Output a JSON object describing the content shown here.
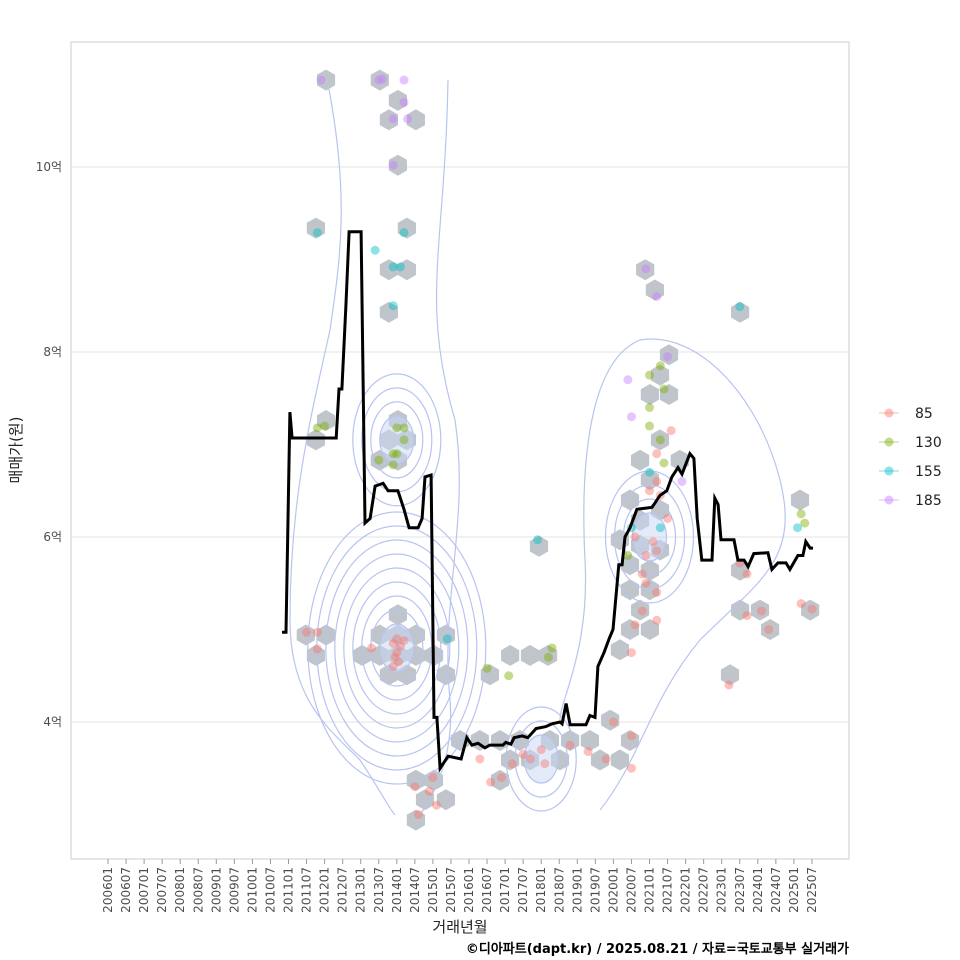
{
  "chart_data": {
    "type": "scatter",
    "title": "",
    "xlabel": "거래년월",
    "ylabel": "매매가(원)",
    "caption": "©디아파트(dapt.kr) / 2025.08.21 / 자료=국토교통부 실거래가",
    "ylim": [
      2.55,
      11.4
    ],
    "xlim": [
      2005.0,
      2026.5
    ],
    "yticks": [
      {
        "v": 4,
        "label": "4억"
      },
      {
        "v": 6,
        "label": "6억"
      },
      {
        "v": 8,
        "label": "8억"
      },
      {
        "v": 10,
        "label": "10억"
      }
    ],
    "xticks": [
      "200601",
      "200607",
      "200701",
      "200707",
      "200801",
      "200807",
      "200901",
      "200907",
      "201001",
      "201007",
      "201101",
      "201107",
      "201201",
      "201207",
      "201301",
      "201307",
      "201401",
      "201407",
      "201501",
      "201507",
      "201601",
      "201607",
      "201701",
      "201707",
      "201801",
      "201807",
      "201901",
      "201907",
      "202001",
      "202007",
      "202101",
      "202107",
      "202201",
      "202207",
      "202301",
      "202307",
      "202401",
      "202407",
      "202501",
      "202507"
    ],
    "legend": {
      "position": "right",
      "entries": [
        {
          "label": "85",
          "color": "#F8766D"
        },
        {
          "label": "130",
          "color": "#7CAE00"
        },
        {
          "label": "155",
          "color": "#00BFC4"
        },
        {
          "label": "185",
          "color": "#C77CFF"
        }
      ]
    },
    "hexbins": [
      [
        2012.04,
        10.94
      ],
      [
        2013.53,
        10.94
      ],
      [
        2014.03,
        10.72
      ],
      [
        2014.53,
        10.51
      ],
      [
        2013.78,
        10.51
      ],
      [
        2014.03,
        10.02
      ],
      [
        2011.76,
        9.34
      ],
      [
        2014.28,
        9.34
      ],
      [
        2013.78,
        8.89
      ],
      [
        2014.28,
        8.89
      ],
      [
        2013.78,
        8.43
      ],
      [
        2017.94,
        5.9
      ],
      [
        2020.88,
        8.89
      ],
      [
        2021.15,
        8.67
      ],
      [
        2023.51,
        8.43
      ],
      [
        2021.54,
        7.97
      ],
      [
        2021.29,
        7.75
      ],
      [
        2021.01,
        7.54
      ],
      [
        2021.54,
        7.54
      ],
      [
        2011.76,
        7.05
      ],
      [
        2012.04,
        7.26
      ],
      [
        2014.03,
        7.26
      ],
      [
        2013.78,
        7.05
      ],
      [
        2014.28,
        7.05
      ],
      [
        2014.03,
        6.83
      ],
      [
        2013.53,
        6.83
      ],
      [
        2021.29,
        7.05
      ],
      [
        2020.74,
        6.83
      ],
      [
        2021.84,
        6.83
      ],
      [
        2021.01,
        6.62
      ],
      [
        2020.46,
        6.4
      ],
      [
        2021.29,
        6.29
      ],
      [
        2020.74,
        6.18
      ],
      [
        2020.18,
        5.97
      ],
      [
        2020.74,
        5.91
      ],
      [
        2021.29,
        5.86
      ],
      [
        2020.46,
        5.7
      ],
      [
        2021.01,
        5.64
      ],
      [
        2020.46,
        5.43
      ],
      [
        2021.01,
        5.43
      ],
      [
        2020.74,
        5.21
      ],
      [
        2020.46,
        5.0
      ],
      [
        2021.01,
        5.0
      ],
      [
        2020.18,
        4.78
      ],
      [
        2023.51,
        5.64
      ],
      [
        2023.51,
        5.21
      ],
      [
        2024.06,
        5.21
      ],
      [
        2024.34,
        5.0
      ],
      [
        2025.17,
        6.4
      ],
      [
        2025.45,
        5.21
      ],
      [
        2023.23,
        4.51
      ],
      [
        2011.48,
        4.94
      ],
      [
        2012.04,
        4.94
      ],
      [
        2011.76,
        4.72
      ],
      [
        2013.53,
        4.94
      ],
      [
        2014.03,
        4.94
      ],
      [
        2014.53,
        4.94
      ],
      [
        2013.04,
        4.72
      ],
      [
        2013.53,
        4.72
      ],
      [
        2014.03,
        4.72
      ],
      [
        2014.53,
        4.72
      ],
      [
        2015.03,
        4.72
      ],
      [
        2015.36,
        4.94
      ],
      [
        2013.78,
        4.51
      ],
      [
        2014.28,
        4.51
      ],
      [
        2015.36,
        4.51
      ],
      [
        2014.03,
        5.16
      ],
      [
        2016.58,
        4.51
      ],
      [
        2017.14,
        4.72
      ],
      [
        2017.69,
        4.72
      ],
      [
        2018.19,
        4.72
      ],
      [
        2015.75,
        3.8
      ],
      [
        2016.3,
        3.8
      ],
      [
        2016.86,
        3.8
      ],
      [
        2017.41,
        3.8
      ],
      [
        2017.14,
        3.59
      ],
      [
        2017.69,
        3.59
      ],
      [
        2018.24,
        3.8
      ],
      [
        2018.8,
        3.8
      ],
      [
        2019.35,
        3.8
      ],
      [
        2019.91,
        4.02
      ],
      [
        2019.63,
        3.59
      ],
      [
        2020.18,
        3.59
      ],
      [
        2020.46,
        3.8
      ],
      [
        2018.52,
        3.59
      ],
      [
        2016.86,
        3.37
      ],
      [
        2014.53,
        3.37
      ],
      [
        2015.03,
        3.37
      ],
      [
        2015.36,
        3.16
      ],
      [
        2014.78,
        3.16
      ],
      [
        2014.53,
        2.94
      ]
    ],
    "points": [
      [
        2011.9,
        10.94,
        "185"
      ],
      [
        2013.6,
        10.95,
        "185"
      ],
      [
        2013.5,
        10.94,
        "185"
      ],
      [
        2014.2,
        10.94,
        "185"
      ],
      [
        2014.2,
        10.7,
        "185"
      ],
      [
        2013.9,
        10.52,
        "185"
      ],
      [
        2014.3,
        10.52,
        "185"
      ],
      [
        2013.9,
        10.02,
        "185"
      ],
      [
        2011.8,
        9.29,
        "155"
      ],
      [
        2014.2,
        9.29,
        "155"
      ],
      [
        2013.4,
        9.1,
        "155"
      ],
      [
        2013.9,
        8.92,
        "155"
      ],
      [
        2014.1,
        8.92,
        "155"
      ],
      [
        2013.9,
        8.5,
        "155"
      ],
      [
        2011.8,
        7.18,
        "130"
      ],
      [
        2012.0,
        7.2,
        "130"
      ],
      [
        2013.5,
        6.83,
        "130"
      ],
      [
        2013.9,
        6.9,
        "130"
      ],
      [
        2014.0,
        6.9,
        "130"
      ],
      [
        2014.0,
        7.18,
        "130"
      ],
      [
        2014.2,
        7.18,
        "130"
      ],
      [
        2014.2,
        7.05,
        "130"
      ],
      [
        2013.9,
        6.78,
        "130"
      ],
      [
        2014.0,
        4.9,
        "85"
      ],
      [
        2013.9,
        4.85,
        "85"
      ],
      [
        2014.1,
        4.82,
        "85"
      ],
      [
        2014.0,
        4.75,
        "85"
      ],
      [
        2013.95,
        4.7,
        "85"
      ],
      [
        2014.05,
        4.65,
        "85"
      ],
      [
        2014.2,
        4.88,
        "85"
      ],
      [
        2013.9,
        4.6,
        "85"
      ],
      [
        2011.5,
        4.97,
        "85"
      ],
      [
        2011.8,
        4.97,
        "85"
      ],
      [
        2011.8,
        4.79,
        "85"
      ],
      [
        2013.3,
        4.8,
        "85"
      ],
      [
        2015.4,
        4.9,
        "155"
      ],
      [
        2016.5,
        4.58,
        "130"
      ],
      [
        2017.1,
        4.5,
        "130"
      ],
      [
        2018.3,
        4.8,
        "130"
      ],
      [
        2018.2,
        4.7,
        "130"
      ],
      [
        2017.9,
        5.97,
        "155"
      ],
      [
        2014.5,
        3.3,
        "85"
      ],
      [
        2014.6,
        3.0,
        "85"
      ],
      [
        2015.0,
        3.4,
        "85"
      ],
      [
        2015.1,
        3.1,
        "85"
      ],
      [
        2014.9,
        3.25,
        "85"
      ],
      [
        2016.3,
        3.6,
        "85"
      ],
      [
        2016.6,
        3.35,
        "85"
      ],
      [
        2016.9,
        3.4,
        "85"
      ],
      [
        2017.2,
        3.55,
        "85"
      ],
      [
        2017.5,
        3.65,
        "85"
      ],
      [
        2017.7,
        3.6,
        "85"
      ],
      [
        2018.0,
        3.7,
        "85"
      ],
      [
        2018.1,
        3.55,
        "85"
      ],
      [
        2018.8,
        3.75,
        "85"
      ],
      [
        2019.3,
        3.68,
        "85"
      ],
      [
        2019.8,
        3.6,
        "85"
      ],
      [
        2020.5,
        3.5,
        "85"
      ],
      [
        2020.5,
        3.85,
        "85"
      ],
      [
        2020.0,
        4.0,
        "85"
      ],
      [
        2020.9,
        8.9,
        "185"
      ],
      [
        2021.2,
        8.6,
        "185"
      ],
      [
        2023.5,
        8.49,
        "155"
      ],
      [
        2021.5,
        7.95,
        "185"
      ],
      [
        2021.3,
        7.85,
        "130"
      ],
      [
        2021.0,
        7.75,
        "130"
      ],
      [
        2020.4,
        7.7,
        "185"
      ],
      [
        2021.4,
        7.6,
        "130"
      ],
      [
        2021.0,
        7.4,
        "130"
      ],
      [
        2020.5,
        7.3,
        "185"
      ],
      [
        2021.0,
        7.2,
        "130"
      ],
      [
        2021.6,
        7.15,
        "85"
      ],
      [
        2021.3,
        7.05,
        "130"
      ],
      [
        2021.2,
        6.9,
        "85"
      ],
      [
        2021.4,
        6.8,
        "130"
      ],
      [
        2021.0,
        6.7,
        "155"
      ],
      [
        2021.2,
        6.6,
        "85"
      ],
      [
        2021.9,
        6.6,
        "185"
      ],
      [
        2021.0,
        6.5,
        "85"
      ],
      [
        2021.3,
        6.45,
        "85"
      ],
      [
        2021.5,
        6.2,
        "85"
      ],
      [
        2021.3,
        6.1,
        "155"
      ],
      [
        2020.5,
        6.1,
        "155"
      ],
      [
        2020.6,
        6.0,
        "85"
      ],
      [
        2021.1,
        5.95,
        "85"
      ],
      [
        2021.2,
        5.85,
        "85"
      ],
      [
        2020.9,
        5.8,
        "85"
      ],
      [
        2020.4,
        5.8,
        "130"
      ],
      [
        2020.8,
        5.6,
        "85"
      ],
      [
        2020.9,
        5.5,
        "85"
      ],
      [
        2021.2,
        5.4,
        "85"
      ],
      [
        2020.8,
        5.2,
        "85"
      ],
      [
        2021.2,
        5.1,
        "85"
      ],
      [
        2020.6,
        5.05,
        "85"
      ],
      [
        2020.5,
        4.75,
        "85"
      ],
      [
        2023.5,
        5.72,
        "85"
      ],
      [
        2023.7,
        5.6,
        "85"
      ],
      [
        2024.1,
        5.2,
        "85"
      ],
      [
        2023.7,
        5.15,
        "85"
      ],
      [
        2024.3,
        5.0,
        "85"
      ],
      [
        2025.2,
        5.28,
        "85"
      ],
      [
        2025.5,
        5.22,
        "85"
      ],
      [
        2025.2,
        6.25,
        "130"
      ],
      [
        2025.3,
        6.15,
        "130"
      ],
      [
        2025.1,
        6.1,
        "155"
      ],
      [
        2023.2,
        4.4,
        "85"
      ]
    ],
    "density_peaks": [
      {
        "x": 2014.0,
        "y": 4.8,
        "rings": 9
      },
      {
        "x": 2014.0,
        "y": 7.05,
        "rings": 4
      },
      {
        "x": 2021.0,
        "y": 6.0,
        "rings": 4
      },
      {
        "x": 2018.0,
        "y": 3.6,
        "rings": 3
      }
    ],
    "line": {
      "name": "median",
      "x": [
        2010.82,
        2010.93,
        2011.04,
        2011.1,
        2012.32,
        2012.4,
        2012.48,
        2012.59,
        2012.68,
        2013.01,
        2013.12,
        2013.26,
        2013.4,
        2013.62,
        2013.76,
        2014.03,
        2014.2,
        2014.34,
        2014.59,
        2014.7,
        2014.78,
        2014.95,
        2015.03,
        2015.11,
        2015.2,
        2015.42,
        2015.78,
        2015.94,
        2016.08,
        2016.25,
        2016.44,
        2016.58,
        2016.94,
        2017.02,
        2017.16,
        2017.25,
        2017.47,
        2017.63,
        2017.86,
        2018.13,
        2018.3,
        2018.52,
        2018.58,
        2018.69,
        2018.8,
        2019.24,
        2019.35,
        2019.49,
        2019.57,
        2019.74,
        2019.88,
        2019.99,
        2020.15,
        2020.24,
        2020.32,
        2020.46,
        2020.65,
        2021.07,
        2021.29,
        2021.48,
        2021.62,
        2021.79,
        2021.9,
        2022.12,
        2022.23,
        2022.32,
        2022.45,
        2022.73,
        2022.81,
        2022.9,
        2022.98,
        2023.34,
        2023.45,
        2023.62,
        2023.73,
        2023.89,
        2024.28,
        2024.39,
        2024.56,
        2024.78,
        2024.89,
        2025.11,
        2025.25,
        2025.33,
        2025.45,
        2025.53
      ],
      "y": [
        4.97,
        4.97,
        7.35,
        7.07,
        7.07,
        7.6,
        7.6,
        8.5,
        9.3,
        9.3,
        6.15,
        6.2,
        6.55,
        6.58,
        6.5,
        6.5,
        6.3,
        6.1,
        6.1,
        6.2,
        6.65,
        6.67,
        4.05,
        4.05,
        3.5,
        3.63,
        3.6,
        3.83,
        3.75,
        3.77,
        3.72,
        3.75,
        3.75,
        3.78,
        3.76,
        3.83,
        3.85,
        3.83,
        3.93,
        3.95,
        3.98,
        4.0,
        3.98,
        4.2,
        3.97,
        3.97,
        4.07,
        4.05,
        4.6,
        4.75,
        4.9,
        5.0,
        5.7,
        5.7,
        6.0,
        6.1,
        6.3,
        6.32,
        6.45,
        6.5,
        6.65,
        6.75,
        6.68,
        6.9,
        6.85,
        6.2,
        5.75,
        5.75,
        6.42,
        6.35,
        5.97,
        5.97,
        5.75,
        5.75,
        5.68,
        5.82,
        5.83,
        5.65,
        5.72,
        5.72,
        5.65,
        5.8,
        5.8,
        5.95,
        5.88,
        5.88
      ]
    }
  }
}
